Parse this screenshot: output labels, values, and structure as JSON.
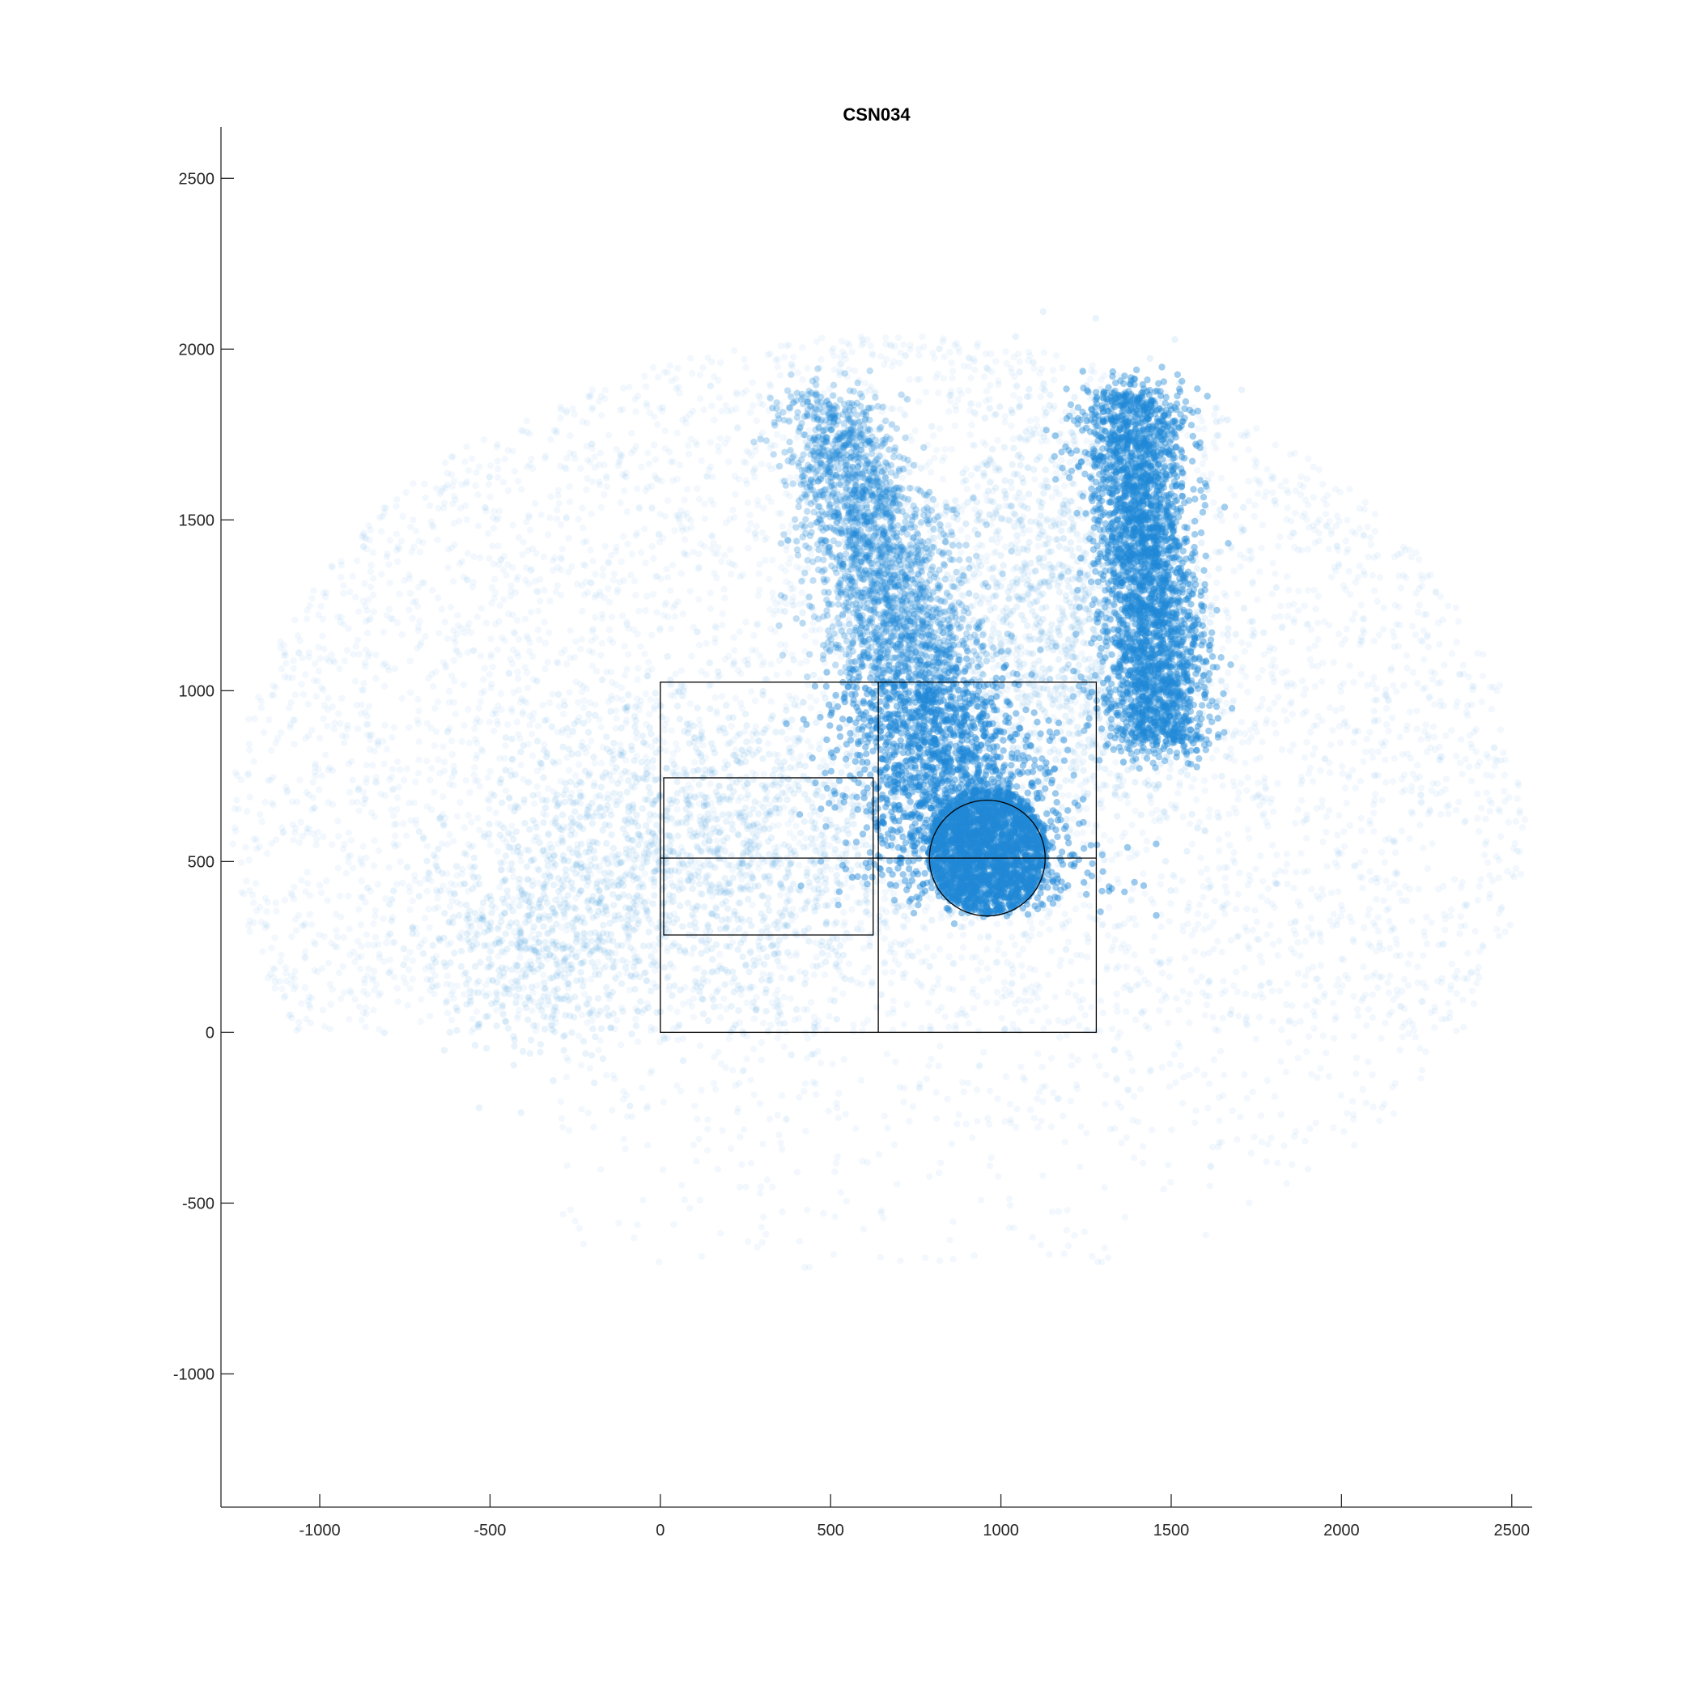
{
  "chart_data": {
    "type": "scatter",
    "title": "CSN034",
    "xlabel": "",
    "ylabel": "",
    "xlim": [
      -1290,
      2560
    ],
    "ylim": [
      -1390,
      2650
    ],
    "x_ticks": [
      -1000,
      -500,
      0,
      500,
      1000,
      1500,
      2000,
      2500
    ],
    "y_ticks": [
      -1000,
      -500,
      0,
      500,
      1000,
      1500,
      2000,
      2500
    ],
    "x_tick_labels": [
      "-1000",
      "-500",
      "0",
      "500",
      "1000",
      "1500",
      "2000",
      "2500"
    ],
    "y_tick_labels": [
      "-1000",
      "-500",
      "0",
      "500",
      "1000",
      "1500",
      "2000",
      "2500"
    ],
    "grid": false,
    "legend": "none",
    "marker_color": "#1f88d6",
    "marker_alpha": "low (points heavily overplotted)",
    "density_regions": [
      {
        "description": "dense vertical band",
        "x_range": [
          400,
          950
        ],
        "y_range": [
          400,
          1900
        ],
        "density": "very high"
      },
      {
        "description": "dense vertical band",
        "x_range": [
          1250,
          1600
        ],
        "y_range": [
          800,
          1900
        ],
        "density": "very high"
      },
      {
        "description": "sparse elliptical cloud",
        "x_range": [
          -1280,
          2550
        ],
        "y_range": [
          -600,
          2050
        ],
        "density": "low"
      }
    ],
    "overlay_shapes": [
      {
        "type": "rectangle",
        "x": [
          0,
          1280
        ],
        "y": [
          0,
          1025
        ],
        "color": "#000000"
      },
      {
        "type": "line",
        "x": [
          640,
          640
        ],
        "y": [
          0,
          1025
        ],
        "color": "#000000"
      },
      {
        "type": "line",
        "x": [
          0,
          1280
        ],
        "y": [
          510,
          510
        ],
        "color": "#000000"
      },
      {
        "type": "rectangle",
        "x": [
          10,
          625
        ],
        "y": [
          285,
          745
        ],
        "color": "#000000"
      },
      {
        "type": "circle",
        "center": [
          960,
          510
        ],
        "radius": 170,
        "color": "#000000"
      }
    ]
  }
}
